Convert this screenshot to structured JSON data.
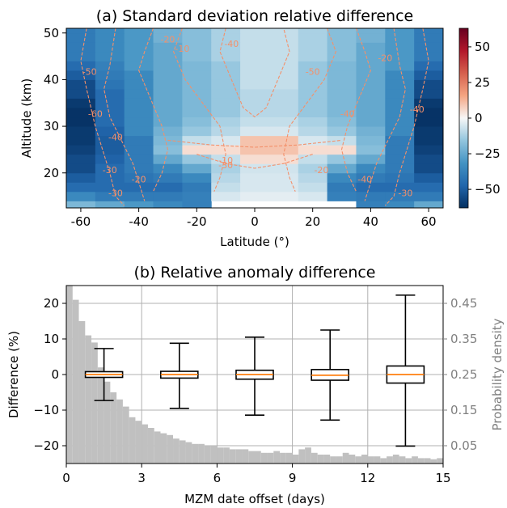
{
  "chart_data": [
    {
      "type": "heatmap",
      "title": "(a) Standard deviation relative difference",
      "xlabel": "Latitude (°)",
      "ylabel": "Altitude (km)",
      "xlim": [
        -65,
        65
      ],
      "ylim": [
        12.5,
        51
      ],
      "xticks": [
        -60,
        -40,
        -20,
        0,
        20,
        40,
        60
      ],
      "yticks": [
        20,
        30,
        40,
        50
      ],
      "colormap": "RdBu_r",
      "colorbar": {
        "range": [
          -63,
          63
        ],
        "ticks": [
          -50,
          -25,
          0,
          25,
          50
        ]
      },
      "lat_bins": [
        -65,
        -55,
        -45,
        -35,
        -25,
        -15,
        -5,
        5,
        15,
        25,
        35,
        45,
        55,
        65
      ],
      "altitude_profiles": [
        {
          "alt": 13,
          "values": [
            -20,
            -25,
            -30,
            -35,
            -38,
            null,
            null,
            null,
            null,
            null,
            -38,
            -35,
            -25
          ]
        },
        {
          "alt": 15,
          "values": [
            -35,
            -40,
            -40,
            -40,
            -38,
            -5,
            -3,
            -3,
            -5,
            -38,
            -40,
            -40,
            -40
          ]
        },
        {
          "alt": 17,
          "values": [
            -45,
            -45,
            -45,
            -45,
            -40,
            -8,
            -5,
            -5,
            -8,
            -40,
            -45,
            -45,
            -45
          ]
        },
        {
          "alt": 19,
          "values": [
            -50,
            -45,
            -42,
            -40,
            -35,
            -10,
            -5,
            -5,
            -10,
            -35,
            -40,
            -42,
            -50
          ]
        },
        {
          "alt": 21,
          "values": [
            -55,
            -45,
            -40,
            -35,
            -25,
            -12,
            -6,
            -6,
            -12,
            -25,
            -35,
            -40,
            -55
          ]
        },
        {
          "alt": 23,
          "values": [
            -55,
            -48,
            -40,
            -25,
            -15,
            -8,
            5,
            5,
            -8,
            -15,
            -25,
            -40,
            -55
          ]
        },
        {
          "alt": 25,
          "values": [
            -58,
            -50,
            -40,
            -18,
            5,
            5,
            10,
            10,
            5,
            5,
            -18,
            -40,
            -58
          ]
        },
        {
          "alt": 27,
          "values": [
            -60,
            -50,
            -40,
            -20,
            -8,
            -5,
            10,
            10,
            -5,
            -8,
            -20,
            -40,
            -60
          ]
        },
        {
          "alt": 29,
          "values": [
            -60,
            -48,
            -35,
            -22,
            -15,
            -10,
            -5,
            -5,
            -10,
            -15,
            -22,
            -35,
            -60
          ]
        },
        {
          "alt": 31,
          "values": [
            -62,
            -45,
            -35,
            -25,
            -18,
            -12,
            -8,
            -8,
            -12,
            -18,
            -25,
            -35,
            -62
          ]
        },
        {
          "alt": 33,
          "values": [
            -62,
            -45,
            -35,
            -25,
            -20,
            -15,
            -10,
            -10,
            -15,
            -20,
            -25,
            -35,
            -62
          ]
        },
        {
          "alt": 35,
          "values": [
            -60,
            -45,
            -35,
            -25,
            -20,
            -15,
            -10,
            -10,
            -15,
            -20,
            -25,
            -35,
            -60
          ]
        },
        {
          "alt": 37,
          "values": [
            -55,
            -45,
            -35,
            -25,
            -20,
            -15,
            -10,
            -10,
            -15,
            -20,
            -25,
            -35,
            -55
          ]
        },
        {
          "alt": 39,
          "values": [
            -55,
            -42,
            -35,
            -25,
            -20,
            -15,
            -8,
            -8,
            -15,
            -20,
            -25,
            -35,
            -55
          ]
        },
        {
          "alt": 41,
          "values": [
            -50,
            -40,
            -35,
            -25,
            -20,
            -15,
            -8,
            -8,
            -15,
            -20,
            -25,
            -35,
            -50
          ]
        },
        {
          "alt": 43,
          "values": [
            -45,
            -38,
            -30,
            -25,
            -20,
            -15,
            -8,
            -8,
            -15,
            -20,
            -25,
            -30,
            -45
          ]
        },
        {
          "alt": 45,
          "values": [
            -40,
            -35,
            -30,
            -25,
            -18,
            -12,
            -8,
            -8,
            -12,
            -18,
            -25,
            -30,
            -40
          ]
        },
        {
          "alt": 47,
          "values": [
            -40,
            -35,
            -30,
            -25,
            -18,
            -12,
            -8,
            -8,
            -12,
            -18,
            -25,
            -30,
            -40
          ]
        },
        {
          "alt": 49,
          "values": [
            -40,
            -35,
            -30,
            -22,
            -18,
            -12,
            -8,
            -8,
            -12,
            -18,
            -22,
            -30,
            -40
          ]
        },
        {
          "alt": 51,
          "values": [
            -40,
            -35,
            -30,
            -22,
            -18,
            -12,
            -8,
            -8,
            -12,
            -18,
            -22,
            -30,
            -40
          ]
        }
      ],
      "contour_labels": [
        "-60",
        "-50",
        "-40",
        "-30",
        "-20",
        "-10",
        "-20",
        "-30",
        "-40",
        "-50",
        "-40",
        "-20",
        "-10",
        "-40",
        "-30",
        "-20",
        "-40",
        "-30"
      ]
    },
    {
      "type": "boxplot",
      "title": "(b) Relative anomaly difference",
      "xlabel": "MZM date offset (days)",
      "ylabel": "Difference (%)",
      "ylabel_right": "Probability density",
      "xlim": [
        0,
        15
      ],
      "ylim": [
        -25,
        25
      ],
      "xticks": [
        0,
        3,
        6,
        9,
        12,
        15
      ],
      "yticks": [
        -20,
        -10,
        0,
        10,
        20
      ],
      "yticks_right": [
        "0.05",
        "0.15",
        "0.25",
        "0.35",
        "0.45"
      ],
      "yright_lim": [
        0,
        0.5
      ],
      "grid": true,
      "boxes": [
        {
          "x": 1.5,
          "whislo": -7.3,
          "q1": -0.8,
          "median": 0,
          "q3": 0.8,
          "whishi": 7.3
        },
        {
          "x": 4.5,
          "whislo": -9.5,
          "q1": -1.0,
          "median": 0,
          "q3": 0.9,
          "whishi": 8.8
        },
        {
          "x": 7.5,
          "whislo": -11.4,
          "q1": -1.3,
          "median": 0,
          "q3": 1.2,
          "whishi": 10.5
        },
        {
          "x": 10.5,
          "whislo": -12.8,
          "q1": -1.6,
          "median": -0.2,
          "q3": 1.4,
          "whishi": 12.5
        },
        {
          "x": 13.5,
          "whislo": -20.1,
          "q1": -2.4,
          "median": 0,
          "q3": 2.4,
          "whishi": 22.3
        }
      ],
      "histogram": {
        "bin_width": 0.25,
        "density": [
          0.5,
          0.46,
          0.4,
          0.36,
          0.34,
          0.27,
          0.23,
          0.2,
          0.18,
          0.16,
          0.13,
          0.12,
          0.11,
          0.1,
          0.09,
          0.085,
          0.08,
          0.07,
          0.065,
          0.06,
          0.055,
          0.055,
          0.05,
          0.05,
          0.045,
          0.045,
          0.04,
          0.04,
          0.04,
          0.035,
          0.035,
          0.03,
          0.03,
          0.035,
          0.03,
          0.03,
          0.025,
          0.04,
          0.045,
          0.03,
          0.025,
          0.025,
          0.02,
          0.02,
          0.03,
          0.025,
          0.02,
          0.025,
          0.02,
          0.02,
          0.015,
          0.02,
          0.025,
          0.02,
          0.015,
          0.02,
          0.015,
          0.015,
          0.012,
          0.015
        ]
      }
    }
  ]
}
